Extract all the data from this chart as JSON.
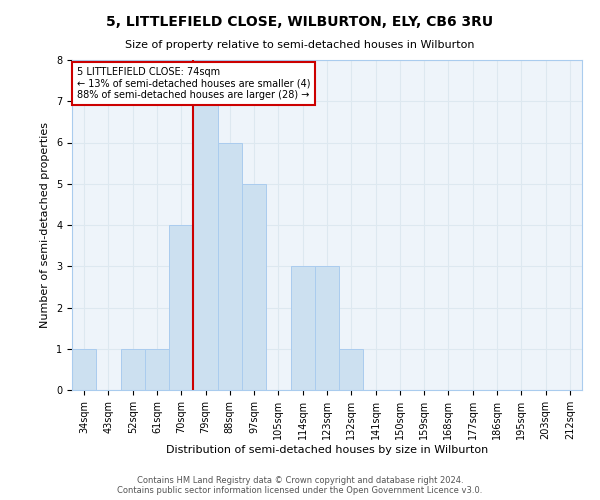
{
  "title": "5, LITTLEFIELD CLOSE, WILBURTON, ELY, CB6 3RU",
  "subtitle": "Size of property relative to semi-detached houses in Wilburton",
  "xlabel": "Distribution of semi-detached houses by size in Wilburton",
  "ylabel": "Number of semi-detached properties",
  "bin_labels": [
    "34sqm",
    "43sqm",
    "52sqm",
    "61sqm",
    "70sqm",
    "79sqm",
    "88sqm",
    "97sqm",
    "105sqm",
    "114sqm",
    "123sqm",
    "132sqm",
    "141sqm",
    "150sqm",
    "159sqm",
    "168sqm",
    "177sqm",
    "186sqm",
    "195sqm",
    "203sqm",
    "212sqm"
  ],
  "bin_counts": [
    1,
    0,
    1,
    1,
    4,
    7,
    6,
    5,
    0,
    3,
    3,
    1,
    0,
    0,
    0,
    0,
    0,
    0,
    0,
    0,
    0
  ],
  "bar_color": "#cce0f0",
  "bar_edge_color": "#aaccee",
  "grid_color": "#dde8f0",
  "background_color": "#eef4fa",
  "property_bin_index": 4,
  "red_line_x": 4.5,
  "annotation_title": "5 LITTLEFIELD CLOSE: 74sqm",
  "annotation_line1": "← 13% of semi-detached houses are smaller (4)",
  "annotation_line2": "88% of semi-detached houses are larger (28) →",
  "annotation_box_color": "#cc0000",
  "footer": "Contains HM Land Registry data © Crown copyright and database right 2024.\nContains public sector information licensed under the Open Government Licence v3.0.",
  "ylim": [
    0,
    8
  ],
  "yticks": [
    0,
    1,
    2,
    3,
    4,
    5,
    6,
    7,
    8
  ],
  "title_fontsize": 10,
  "subtitle_fontsize": 8,
  "ylabel_fontsize": 8,
  "xlabel_fontsize": 8,
  "tick_fontsize": 7,
  "footer_fontsize": 6
}
